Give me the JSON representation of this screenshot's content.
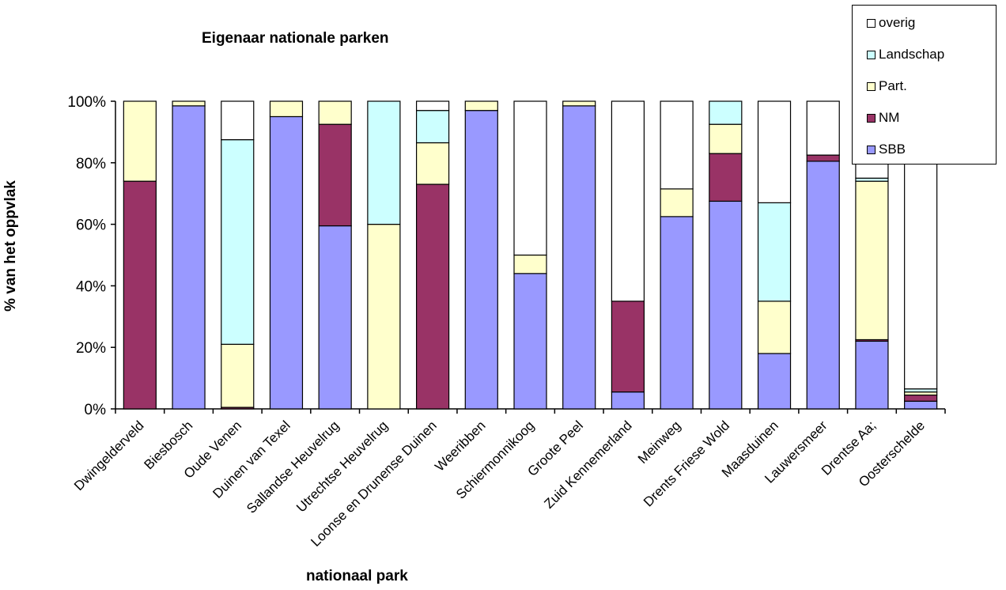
{
  "chart_data": {
    "type": "bar",
    "stacked": true,
    "percent": true,
    "title": "Eigenaar nationale parken",
    "xlabel": "nationaal park",
    "ylabel": "% van het oppvlak",
    "ylim": [
      0,
      100
    ],
    "yticks": [
      "0%",
      "20%",
      "40%",
      "60%",
      "80%",
      "100%"
    ],
    "grid": false,
    "legend_position": "top-right",
    "categories": [
      "Dwingelderveld",
      "Biesbosch",
      "Oude Venen",
      "Duinen van Texel",
      "Sallandse Heuvelrug",
      "Utrechtse Heuvelrug",
      "Loonse en Drunense Duinen",
      "Weeribben",
      "Schiermonnikoog",
      "Groote Peel",
      "Zuid Kennemerland",
      "Meinweg",
      "Drents Friese Wold",
      "Maasduinen",
      "Lauwersmeer",
      "Drentse Aa;",
      "Oosterschelde"
    ],
    "series": [
      {
        "name": "SBB",
        "color": "#9999ff",
        "values": [
          0,
          98.5,
          0,
          95,
          59.5,
          0,
          0,
          97,
          44,
          98.5,
          5.5,
          62.5,
          67.5,
          18,
          80.5,
          22,
          2.5
        ]
      },
      {
        "name": "NM",
        "color": "#993366",
        "values": [
          74,
          0,
          0.5,
          0,
          33,
          0,
          73,
          0,
          0,
          0,
          29.5,
          0,
          15.5,
          0,
          2,
          0.5,
          2
        ]
      },
      {
        "name": "Part.",
        "color": "#ffffcc",
        "values": [
          26,
          1.5,
          20.5,
          5,
          7.5,
          60,
          13.5,
          3,
          6,
          1.5,
          0,
          9,
          9.5,
          17,
          0,
          51.5,
          1
        ]
      },
      {
        "name": "Landschap",
        "color": "#ccffff",
        "values": [
          0,
          0,
          66.5,
          0,
          0,
          40,
          10.5,
          0,
          0,
          0,
          0,
          0,
          7.5,
          32,
          0,
          1,
          1
        ]
      },
      {
        "name": "overig",
        "color": "#ffffff",
        "values": [
          0,
          0,
          12.5,
          0,
          0,
          0,
          3,
          0,
          50,
          0,
          65,
          28.5,
          0,
          33,
          17.5,
          25,
          93.5
        ]
      }
    ]
  }
}
